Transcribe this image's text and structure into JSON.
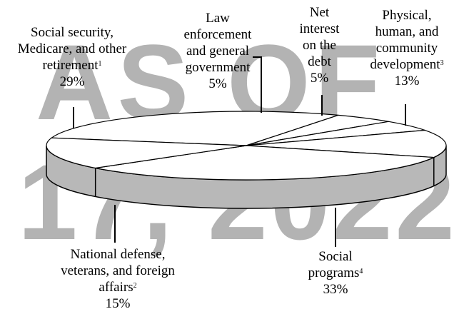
{
  "watermark": {
    "line1": "AS OF",
    "line2": "17, 2022"
  },
  "chart_data": {
    "type": "pie",
    "style": "3d-disc",
    "slices": [
      {
        "lines": [
          "Social security,",
          "Medicare, and other",
          "retirement"
        ],
        "footnote": "1",
        "value": 29
      },
      {
        "lines": [
          "National defense,",
          "veterans, and foreign",
          "affairs"
        ],
        "footnote": "2",
        "value": 15
      },
      {
        "lines": [
          "Social",
          "programs"
        ],
        "footnote": "4",
        "value": 33
      },
      {
        "lines": [
          "Physical,",
          "human, and",
          "community",
          "development"
        ],
        "footnote": "3",
        "value": 13
      },
      {
        "lines": [
          "Net",
          "interest",
          "on the",
          "debt"
        ],
        "footnote": "",
        "value": 5
      },
      {
        "lines": [
          "Law",
          "enforcement",
          "and general",
          "government"
        ],
        "footnote": "",
        "value": 5
      }
    ],
    "colors": {
      "top": "#ffffff",
      "side": "#b8b8b8",
      "stroke": "#000000"
    }
  }
}
